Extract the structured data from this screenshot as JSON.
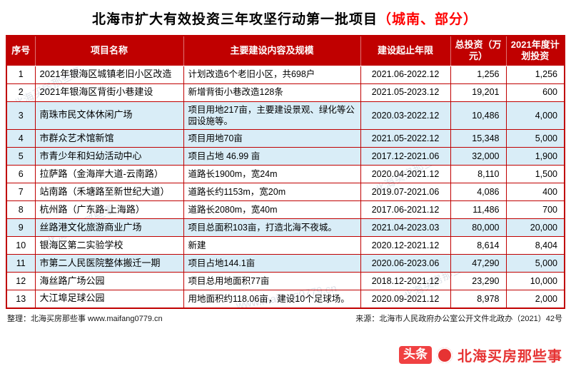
{
  "title": {
    "main": "北海市扩大有效投资三年攻坚行动第一批项目",
    "highlight": "（城南、部分）"
  },
  "table": {
    "headers": [
      "序号",
      "项目名称",
      "主要建设内容及规模",
      "建设起止年限",
      "总投资（万元）",
      "2021年度计划投资"
    ],
    "rows": [
      {
        "no": "1",
        "name": "2021年银海区城镇老旧小区改造",
        "content": "计划改造6个老旧小区，共698户",
        "period": "2021.06-2022.12",
        "total": "1,256",
        "plan": "1,256",
        "highlight": false
      },
      {
        "no": "2",
        "name": "2021年银海区背街小巷建设",
        "content": "新增背街小巷改造128条",
        "period": "2021.05-2023.12",
        "total": "19,201",
        "plan": "600",
        "highlight": false
      },
      {
        "no": "3",
        "name": "南珠市民文体休闲广场",
        "content": "项目用地217亩，主要建设景观、绿化等公园设施等。",
        "period": "2020.03-2022.12",
        "total": "10,486",
        "plan": "4,000",
        "highlight": true
      },
      {
        "no": "4",
        "name": "市群众艺术馆新馆",
        "content": "项目用地70亩",
        "period": "2021.05-2022.12",
        "total": "15,348",
        "plan": "5,000",
        "highlight": true
      },
      {
        "no": "5",
        "name": "市青少年和妇幼活动中心",
        "content": "项目占地 46.99 亩",
        "period": "2017.12-2021.06",
        "total": "32,000",
        "plan": "1,900",
        "highlight": true
      },
      {
        "no": "6",
        "name": "拉萨路（金海岸大道-云南路）",
        "content": "道路长1900m，宽24m",
        "period": "2020.04-2021.12",
        "total": "8,110",
        "plan": "1,500",
        "highlight": false
      },
      {
        "no": "7",
        "name": "站南路（禾塘路至新世纪大道）",
        "content": "道路长约1153m，宽20m",
        "period": "2019.07-2021.06",
        "total": "4,086",
        "plan": "400",
        "highlight": false
      },
      {
        "no": "8",
        "name": "杭州路（广东路-上海路）",
        "content": "道路长2080m，宽40m",
        "period": "2017.06-2021.12",
        "total": "11,486",
        "plan": "700",
        "highlight": false
      },
      {
        "no": "9",
        "name": "丝路港文化旅游商业广场",
        "content": "项目总面积103亩，打造北海不夜城。",
        "period": "2021.04-2023.03",
        "total": "80,000",
        "plan": "20,000",
        "highlight": true
      },
      {
        "no": "10",
        "name": "银海区第二实验学校",
        "content": "新建",
        "period": "2020.12-2021.12",
        "total": "8,614",
        "plan": "8,404",
        "highlight": false
      },
      {
        "no": "11",
        "name": "市第二人民医院整体搬迁一期",
        "content": "项目占地144.1亩",
        "period": "2020.06-2023.06",
        "total": "47,290",
        "plan": "5,000",
        "highlight": true
      },
      {
        "no": "12",
        "name": "海丝路广场公园",
        "content": "项目总用地面积77亩",
        "period": "2018.12-2021.12",
        "total": "23,290",
        "plan": "10,000",
        "highlight": false
      },
      {
        "no": "13",
        "name": "大江埠足球公园",
        "content": "用地面积约118.06亩，建设10个足球场。",
        "period": "2020.09-2021.12",
        "total": "8,978",
        "plan": "2,000",
        "highlight": false
      }
    ]
  },
  "footer": {
    "left": "整理：北海买房那些事 www.maifang0779.cn",
    "right": "来源：北海市人民政府办公室公开文件北政办（2021）42号"
  },
  "branding": {
    "badge": "头条",
    "account": "北海买房那些事"
  },
  "watermark": {
    "text": "北海买房那些事",
    "url": "www.maifang0779.cn"
  },
  "colors": {
    "header_bg": "#c00000",
    "row_highlight": "#d9edf7",
    "border": "#c00000",
    "accent_red": "#ff0000",
    "brand_red": "#e63333"
  }
}
